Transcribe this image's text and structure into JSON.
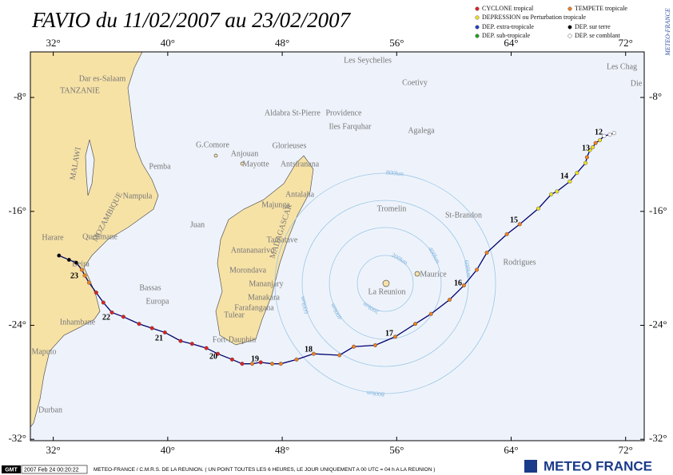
{
  "header": {
    "title": "FAVIO du 11/02/2007 au 23/02/2007",
    "side_label": "METEO-FRANCE"
  },
  "legend": [
    {
      "label": "CYCLONE tropical",
      "color": "#e02020"
    },
    {
      "label": "TEMPETE tropicale",
      "color": "#f08020"
    },
    {
      "label": "DEPRESSION ou Perturbation tropicale",
      "color": "#f0e020"
    },
    {
      "label": "DEP. extra-tropicale",
      "color": "#2040c0"
    },
    {
      "label": "DEP. sur terre",
      "color": "#000000"
    },
    {
      "label": "DEP. sub-tropicale",
      "color": "#20a020"
    },
    {
      "label": "DEP. se comblant",
      "color": "#ffffff"
    }
  ],
  "map": {
    "xlim": [
      30.4,
      73.3
    ],
    "ylim": [
      -32.1,
      -4.8
    ],
    "xticks": [
      {
        "value": 32,
        "label": "32°"
      },
      {
        "value": 40,
        "label": "40°"
      },
      {
        "value": 48,
        "label": "48°"
      },
      {
        "value": 56,
        "label": "56°"
      },
      {
        "value": 64,
        "label": "64°"
      },
      {
        "value": 72,
        "label": "72°"
      }
    ],
    "yticks": [
      {
        "value": -8,
        "label": "-8°"
      },
      {
        "value": -16,
        "label": "-16°"
      },
      {
        "value": -24,
        "label": "-24°"
      },
      {
        "value": -32,
        "label": "-32°"
      }
    ],
    "places": [
      "Les Seychelles",
      "Coetivy",
      "Dar es-Salaam",
      "TANZANIE",
      "Aldabra",
      "St-Pierre",
      "Providence",
      "Iles Farquhar",
      "Agalega",
      "G.Comore",
      "Anjouan",
      "Glorieuses",
      "Mayotte",
      "Antsiranana",
      "Pemba",
      "Nampula",
      "Antalaha",
      "Majunga",
      "Tromelin",
      "St-Brandon",
      "Juan",
      "Quelimane",
      "Harare",
      "Tamatave",
      "Antananarivo",
      "Rodrigues",
      "Beira",
      "Morondava",
      "Maurice",
      "Mananjary",
      "La Reunion",
      "Bassas",
      "Manakara",
      "Europa",
      "Farafangana",
      "Tulear",
      "Inhambane",
      "Fort-Dauphin",
      "Maputo",
      "Durban",
      "Les Chag",
      "Die"
    ],
    "countries": [
      "MALAWI",
      "MOZAMBIQUE",
      "MADAGASCAR"
    ],
    "rings": [
      "200km",
      "400km",
      "600km",
      "800km"
    ],
    "days": [
      "12",
      "13",
      "14",
      "15",
      "16",
      "17",
      "18",
      "19",
      "20",
      "21",
      "22",
      "23"
    ]
  },
  "track": {
    "lon": [
      71.2,
      70.9,
      70.5,
      70.2,
      69.9,
      69.7,
      69.5,
      69.3,
      69.2,
      68.6,
      68.1,
      67.2,
      66.8,
      65.9,
      64.6,
      63.7,
      62.3,
      61.6,
      60.7,
      59.7,
      58.4,
      57.3,
      55.9,
      54.5,
      53.0,
      52.0,
      50.2,
      49.0,
      47.9,
      47.3,
      46.5,
      45.9,
      45.2,
      44.5,
      43.5,
      42.7,
      41.7,
      40.9,
      39.8,
      38.9,
      38.0,
      36.9,
      36.1,
      35.5,
      35.0,
      34.5,
      34.2,
      34.0,
      33.6,
      33.1,
      32.4
    ],
    "lat": [
      -10.5,
      -10.6,
      -10.7,
      -11.0,
      -11.2,
      -11.5,
      -11.7,
      -12.2,
      -12.6,
      -13.3,
      -13.9,
      -14.6,
      -14.8,
      -15.8,
      -16.9,
      -17.6,
      -18.9,
      -20.1,
      -21.2,
      -22.2,
      -23.2,
      -23.9,
      -24.8,
      -25.4,
      -25.5,
      -26.1,
      -26.0,
      -26.4,
      -26.7,
      -26.7,
      -26.6,
      -26.7,
      -26.7,
      -26.4,
      -26.0,
      -25.6,
      -25.3,
      -25.1,
      -24.5,
      -24.2,
      -23.9,
      -23.4,
      -23.1,
      -22.4,
      -21.7,
      -21.0,
      -20.5,
      -20.1,
      -19.6,
      -19.4,
      -19.1
    ],
    "status": [
      6,
      6,
      6,
      2,
      1,
      2,
      2,
      1,
      2,
      2,
      2,
      2,
      2,
      2,
      1,
      1,
      1,
      1,
      1,
      1,
      1,
      1,
      1,
      1,
      1,
      1,
      1,
      1,
      1,
      1,
      0,
      1,
      0,
      0,
      0,
      0,
      0,
      0,
      0,
      0,
      0,
      0,
      0,
      0,
      0,
      1,
      1,
      1,
      4,
      4,
      4
    ]
  },
  "footer": {
    "logo": "GMT",
    "timestamp": "2007 Feb 24 00:20:22",
    "credit": "METEO-FRANCE / C.M.R.S. DE LA REUNION.  ( UN POINT TOUTES LES 6 HEURES, LE JOUR UNIQUEMENT A 00 UTC = 04 h A LA REUNION )",
    "brand": "METEO FRANCE"
  }
}
